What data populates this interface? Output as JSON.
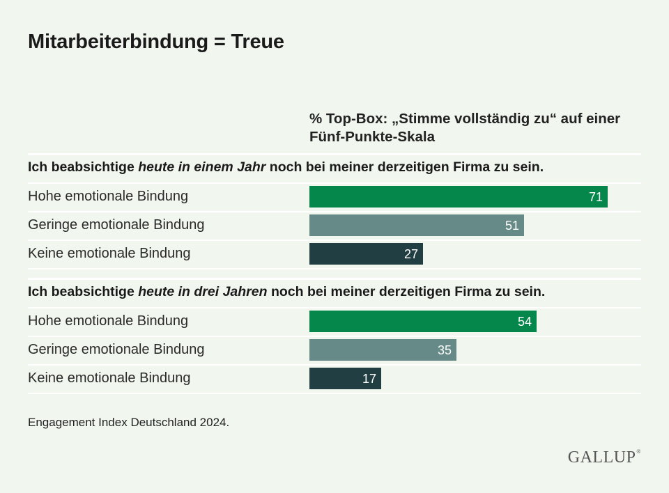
{
  "title": "Mitarbeiterbindung = Treue",
  "column_header": "% Top-Box: „Stimme vollständig zu“ auf einer Fünf-Punkte-Skala",
  "footnote": "Engagement Index Deutschland 2024.",
  "logo": "GALLUP",
  "colors": {
    "hohe": "#05874c",
    "geringe": "#668a87",
    "keine": "#213f42",
    "background": "#f1f6ef"
  },
  "chart_data": {
    "type": "bar",
    "orientation": "horizontal",
    "xlim": [
      0,
      100
    ],
    "groups": [
      {
        "title_pre": "Ich beabsichtige ",
        "title_em": "heute in einem Jahr",
        "title_post": " noch bei meiner derzeitigen Firma zu sein.",
        "categories": [
          "Hohe emotionale Bindung",
          "Geringe emotionale Bindung",
          "Keine emotionale Bindung"
        ],
        "values": [
          71,
          51,
          27
        ]
      },
      {
        "title_pre": "Ich beabsichtige ",
        "title_em": "heute in drei Jahren",
        "title_post": " noch bei meiner derzeitigen Firma zu sein.",
        "categories": [
          "Hohe emotionale Bindung",
          "Geringe emotionale Bindung",
          "Keine emotionale Bindung"
        ],
        "values": [
          54,
          35,
          17
        ]
      }
    ]
  }
}
